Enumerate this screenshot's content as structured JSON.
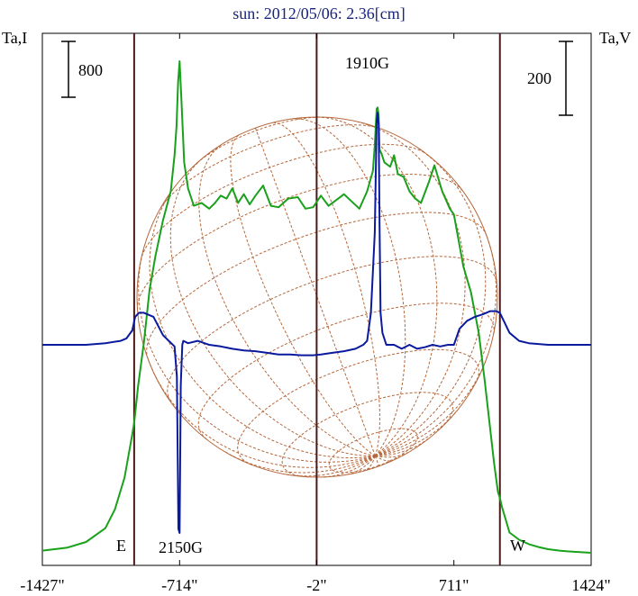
{
  "title": "sun: 2012/05/06: 2.36[cm]",
  "colors": {
    "intensity": "#19a11b",
    "polarization": "#0a1a9e",
    "grid": "#b5673a",
    "vline": "#4a1a1a",
    "title": "#1a237e"
  },
  "y_left_label": "Ta,I",
  "y_right_label": "Ta,V",
  "scale_left_label": "800",
  "scale_right_label": "200",
  "limb_east_label": "E",
  "limb_west_label": "W",
  "annotations": {
    "peak_top": "1910G",
    "peak_bottom": "2150G"
  },
  "chart_data": {
    "type": "line",
    "title": "sun: 2012/05/06: 2.36[cm]",
    "x_tick_labels": [
      "-1427\"",
      "-714\"",
      "-2\"",
      "711\"",
      "1424\""
    ],
    "x_ticks": [
      -1427,
      -714,
      -2,
      711,
      1424
    ],
    "xlim": [
      -1427,
      1424
    ],
    "vertical_lines_arcsec": [
      -950,
      -2,
      950
    ],
    "scale_bars": {
      "left": {
        "label": "800",
        "axis": "Ta,I"
      },
      "right": {
        "label": "200",
        "axis": "Ta,V"
      }
    },
    "grid": true,
    "series": [
      {
        "name": "Ta,I",
        "axis": "left",
        "x": [
          -1427,
          -1300,
          -1200,
          -1100,
          -1050,
          -1000,
          -960,
          -950,
          -930,
          -900,
          -870,
          -840,
          -800,
          -760,
          -740,
          -730,
          -722,
          -714,
          -705,
          -690,
          -670,
          -640,
          -600,
          -560,
          -530,
          -500,
          -470,
          -440,
          -410,
          -380,
          -350,
          -320,
          -280,
          -240,
          -200,
          -150,
          -100,
          -60,
          -20,
          20,
          60,
          100,
          140,
          180,
          220,
          260,
          290,
          300,
          310,
          315,
          320,
          325,
          335,
          350,
          380,
          400,
          420,
          450,
          480,
          510,
          540,
          580,
          610,
          650,
          690,
          711,
          730,
          760,
          800,
          840,
          870,
          900,
          920,
          940,
          950,
          960,
          980,
          1000,
          1050,
          1100,
          1150,
          1200,
          1260,
          1300,
          1424
        ],
        "y": [
          15,
          35,
          75,
          170,
          300,
          520,
          820,
          900,
          1150,
          1450,
          1820,
          2050,
          2300,
          2500,
          2750,
          2950,
          3250,
          3400,
          3150,
          2700,
          2520,
          2400,
          2420,
          2380,
          2420,
          2470,
          2450,
          2520,
          2420,
          2480,
          2410,
          2470,
          2540,
          2400,
          2390,
          2450,
          2460,
          2380,
          2390,
          2470,
          2400,
          2440,
          2480,
          2430,
          2380,
          2500,
          2640,
          2820,
          3070,
          3080,
          3020,
          2790,
          2760,
          2700,
          2670,
          2750,
          2620,
          2600,
          2500,
          2450,
          2420,
          2560,
          2680,
          2500,
          2380,
          2340,
          2200,
          1980,
          1800,
          1520,
          1200,
          850,
          620,
          420,
          380,
          320,
          230,
          140,
          90,
          60,
          40,
          25,
          15,
          10,
          0
        ]
      },
      {
        "name": "Ta,V",
        "axis": "right",
        "x": [
          -1427,
          -1200,
          -1100,
          -1020,
          -990,
          -960,
          -945,
          -925,
          -900,
          -880,
          -850,
          -800,
          -770,
          -740,
          -728,
          -720,
          -714,
          -708,
          -700,
          -695,
          -670,
          -620,
          -560,
          -500,
          -440,
          -380,
          -320,
          -260,
          -200,
          -140,
          -80,
          -20,
          20,
          80,
          140,
          200,
          240,
          260,
          280,
          300,
          310,
          315,
          320,
          325,
          330,
          340,
          360,
          400,
          440,
          480,
          520,
          560,
          600,
          640,
          680,
          711,
          740,
          780,
          820,
          860,
          900,
          930,
          950,
          970,
          1000,
          1050,
          1100,
          1200,
          1300,
          1424
        ],
        "y": [
          0,
          0,
          2,
          5,
          8,
          18,
          35,
          40,
          40,
          38,
          35,
          12,
          5,
          -2,
          -40,
          -230,
          -235,
          -50,
          0,
          5,
          2,
          5,
          0,
          -2,
          -5,
          -7,
          -8,
          -10,
          -12,
          -12,
          -13,
          -13,
          -12,
          -10,
          -8,
          -5,
          0,
          5,
          40,
          140,
          280,
          290,
          275,
          150,
          40,
          15,
          0,
          0,
          -5,
          0,
          -5,
          -3,
          0,
          -2,
          0,
          0,
          20,
          30,
          35,
          38,
          42,
          42,
          40,
          30,
          15,
          5,
          2,
          0,
          0,
          0
        ]
      }
    ],
    "annotations": [
      {
        "text": "1910G",
        "x": 315,
        "series": "Ta,V"
      },
      {
        "text": "2150G",
        "x": -714,
        "series": "Ta,V"
      }
    ]
  }
}
